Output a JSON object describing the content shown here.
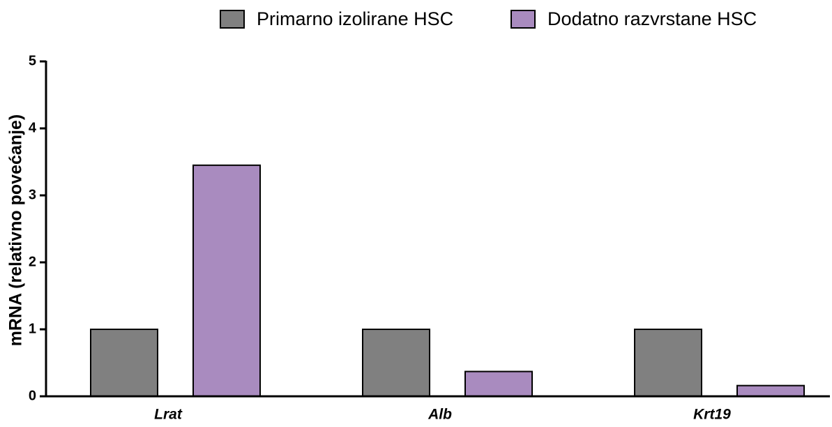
{
  "chart_data": {
    "type": "bar",
    "y_label": "mRNA (relativno povećanje)",
    "categories": [
      "Lrat",
      "Alb",
      "Krt19"
    ],
    "series": [
      {
        "name": "Primarno izolirane HSC",
        "color": "#808080",
        "values": [
          1,
          1,
          1
        ]
      },
      {
        "name": "Dodatno razvrstane HSC",
        "color": "#a98bbf",
        "values": [
          3.45,
          0.37,
          0.16
        ]
      }
    ],
    "ylim": [
      0,
      5
    ],
    "yticks": [
      0,
      1,
      2,
      3,
      4,
      5
    ],
    "legend": "top"
  }
}
